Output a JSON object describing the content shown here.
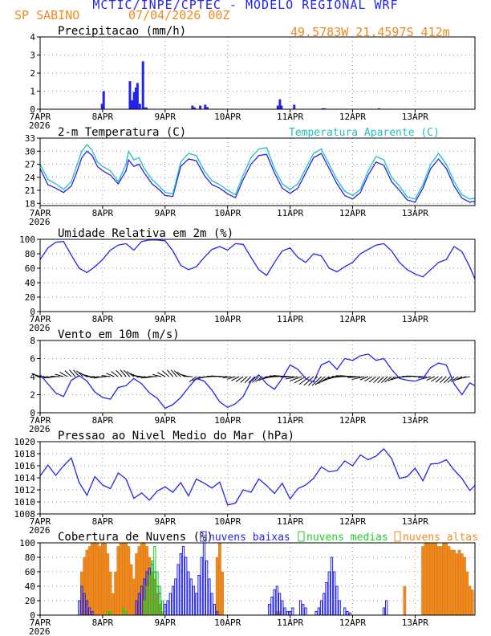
{
  "header": {
    "title": "MCTIC/INPE/CPTEC - MODELO REGIONAL WRF",
    "station": "SP SABINO",
    "date": "07/04/2026 00Z",
    "coords": "49.5783W 21.4597S 412m"
  },
  "colors": {
    "blue": "#2323ee",
    "cyan": "#1fbfbf",
    "orange": "#f08a1e",
    "green": "#22cc22",
    "black": "#000000"
  },
  "x_axis": {
    "ticks": [
      {
        "label": "7APR",
        "year": "2026",
        "hour": 0
      },
      {
        "label": "8APR",
        "hour": 24
      },
      {
        "label": "9APR",
        "hour": 48
      },
      {
        "label": "10APR",
        "hour": 72
      },
      {
        "label": "11APR",
        "hour": 96
      },
      {
        "label": "12APR",
        "hour": 120
      },
      {
        "label": "13APR",
        "hour": 144
      }
    ],
    "range_hours": [
      0,
      167
    ]
  },
  "chart_data": [
    {
      "id": "precip",
      "type": "bar",
      "title": "Precipitacao (mm/h)",
      "ylim": [
        0,
        4
      ],
      "yticks": [
        0,
        1,
        2,
        3,
        4
      ],
      "grid": true,
      "series": [
        {
          "name": "",
          "x": [
            23.8,
            24.4,
            34.5,
            35.3,
            36.1,
            36.8,
            37.4,
            38.3,
            39.5,
            40.2,
            40.8,
            58.5,
            59.3,
            61.5,
            63.4,
            64.2,
            91.3,
            92.1,
            92.7,
            97.6,
            108.5,
            109.3,
            130.2
          ],
          "values": [
            0.3,
            1.0,
            1.55,
            0.5,
            0.95,
            1.2,
            1.45,
            0.3,
            2.65,
            0.1,
            0.1,
            0.2,
            0.1,
            0.2,
            0.25,
            0.12,
            0.2,
            0.55,
            0.2,
            0.25,
            0.05,
            0.05,
            0.05
          ]
        }
      ]
    },
    {
      "id": "temp",
      "type": "line",
      "title": "2-m Temperatura (C)",
      "ylim": [
        17.5,
        33
      ],
      "yticks": [
        18,
        21,
        24,
        27,
        30,
        33
      ],
      "grid": true,
      "legend": "top-right",
      "series": [
        {
          "name": "",
          "x": [
            0,
            3,
            6,
            9,
            12,
            14,
            16,
            18,
            20,
            22,
            24,
            27,
            30,
            33,
            34,
            36,
            38,
            40,
            43,
            46,
            48,
            51,
            54,
            57,
            60,
            63,
            66,
            69,
            72,
            75,
            78,
            81,
            84,
            87,
            90,
            93,
            96,
            99,
            102,
            105,
            108,
            111,
            114,
            117,
            120,
            123,
            126,
            129,
            132,
            135,
            138,
            141,
            144,
            147,
            150,
            153,
            156,
            159,
            162,
            165,
            167
          ],
          "values": [
            26,
            22.3,
            21.5,
            20.5,
            22,
            25,
            28.5,
            30,
            29,
            26.5,
            25.5,
            24.5,
            22.5,
            25.5,
            28,
            26.5,
            27,
            25,
            22.5,
            21,
            19.8,
            19.6,
            26.5,
            28.2,
            27.8,
            24.5,
            22.3,
            21.5,
            20.2,
            19.3,
            23.5,
            27,
            29,
            29.3,
            25,
            21.5,
            20.3,
            21.5,
            25,
            28.5,
            29.5,
            26,
            22.5,
            19.8,
            19,
            20.5,
            24.5,
            27.5,
            26.8,
            23,
            21,
            18.8,
            18.3,
            21.5,
            26,
            28.2,
            26,
            22,
            19.2,
            18.3,
            18.5
          ]
        },
        {
          "name": "Temperatura Aparente (C)",
          "x": [
            0,
            3,
            6,
            9,
            12,
            14,
            16,
            18,
            20,
            22,
            24,
            27,
            30,
            33,
            34,
            36,
            38,
            40,
            43,
            46,
            48,
            51,
            54,
            57,
            60,
            63,
            66,
            69,
            72,
            75,
            78,
            81,
            84,
            87,
            90,
            93,
            96,
            99,
            102,
            105,
            108,
            111,
            114,
            117,
            120,
            123,
            126,
            129,
            132,
            135,
            138,
            141,
            144,
            147,
            150,
            153,
            156,
            159,
            162,
            165,
            167
          ],
          "values": [
            27,
            23.5,
            22.5,
            21.2,
            23,
            26.5,
            30,
            31.5,
            30.2,
            27.5,
            26.5,
            25.5,
            23,
            27,
            30,
            28,
            28.5,
            26,
            23.5,
            21.8,
            20.5,
            20.2,
            27.5,
            29.5,
            29,
            25.5,
            23.2,
            22.3,
            21,
            20,
            24.5,
            28.5,
            30.5,
            30.8,
            26,
            22.5,
            21.2,
            22.5,
            26,
            29.5,
            30.5,
            27,
            23.5,
            20.8,
            19.8,
            21.2,
            25.5,
            28.8,
            28,
            24,
            22,
            19.5,
            19,
            22.3,
            27,
            29.5,
            27,
            23,
            20,
            19,
            19.2
          ]
        }
      ]
    },
    {
      "id": "rh",
      "type": "line",
      "title": "Umidade Relativa em 2m (%)",
      "ylim": [
        0,
        100
      ],
      "yticks": [
        0,
        20,
        40,
        60,
        80,
        100
      ],
      "grid": true,
      "series": [
        {
          "name": "",
          "x": [
            0,
            3,
            6,
            9,
            12,
            15,
            18,
            21,
            24,
            27,
            30,
            33,
            36,
            39,
            42,
            45,
            48,
            51,
            54,
            57,
            60,
            63,
            66,
            69,
            72,
            75,
            78,
            81,
            84,
            87,
            90,
            93,
            96,
            99,
            102,
            105,
            108,
            111,
            114,
            117,
            120,
            123,
            126,
            129,
            132,
            135,
            138,
            141,
            144,
            147,
            150,
            153,
            156,
            159,
            162,
            165,
            167
          ],
          "values": [
            72,
            88,
            96,
            97,
            78,
            60,
            54,
            62,
            72,
            85,
            92,
            94,
            85,
            97,
            99,
            99,
            98,
            84,
            64,
            58,
            62,
            75,
            86,
            90,
            85,
            94,
            93,
            75,
            58,
            50,
            68,
            84,
            88,
            75,
            68,
            80,
            77,
            60,
            55,
            62,
            68,
            80,
            86,
            92,
            94,
            84,
            68,
            58,
            52,
            48,
            58,
            68,
            72,
            90,
            83,
            62,
            45
          ]
        }
      ]
    },
    {
      "id": "wind",
      "type": "line",
      "title": "Vento em 10m (m/s)",
      "ylim": [
        0,
        8
      ],
      "yticks": [
        0,
        2,
        4,
        6,
        8
      ],
      "grid": true,
      "series": [
        {
          "name": "",
          "x": [
            0,
            3,
            6,
            9,
            12,
            15,
            18,
            21,
            24,
            27,
            30,
            33,
            36,
            39,
            42,
            45,
            48,
            51,
            54,
            57,
            60,
            63,
            66,
            69,
            72,
            75,
            78,
            81,
            84,
            87,
            90,
            93,
            96,
            99,
            102,
            105,
            108,
            111,
            114,
            117,
            120,
            123,
            126,
            129,
            132,
            135,
            138,
            141,
            144,
            147,
            150,
            153,
            156,
            159,
            162,
            165,
            167
          ],
          "values": [
            4.2,
            3.2,
            2.2,
            1.8,
            3.6,
            4.1,
            3.5,
            2.3,
            1.7,
            1.5,
            2.8,
            3.0,
            3.8,
            3.2,
            2.2,
            1.6,
            0.5,
            0.9,
            1.7,
            2.8,
            3.8,
            3.5,
            2.5,
            1.2,
            0.6,
            1.0,
            1.8,
            3.5,
            4.2,
            3.2,
            2.6,
            3.8,
            5.3,
            4.8,
            3.8,
            3.4,
            5.3,
            5.7,
            4.8,
            6.0,
            5.8,
            6.3,
            6.5,
            5.8,
            6.0,
            4.8,
            3.8,
            3.6,
            3.5,
            3.8,
            5.0,
            5.5,
            5.3,
            3.2,
            2.0,
            3.3,
            3.0
          ]
        }
      ]
    },
    {
      "id": "slp",
      "type": "line",
      "title": "Pressao ao Nivel Medio do Mar (hPa)",
      "ylim": [
        1008,
        1020
      ],
      "yticks": [
        1008,
        1010,
        1012,
        1014,
        1016,
        1018,
        1020
      ],
      "grid": true,
      "series": [
        {
          "name": "",
          "x": [
            0,
            3,
            6,
            9,
            12,
            15,
            18,
            21,
            24,
            27,
            30,
            33,
            36,
            39,
            42,
            45,
            48,
            51,
            54,
            57,
            60,
            63,
            66,
            69,
            72,
            75,
            78,
            81,
            84,
            87,
            90,
            93,
            96,
            99,
            102,
            105,
            108,
            111,
            114,
            117,
            120,
            123,
            126,
            129,
            132,
            135,
            138,
            141,
            144,
            147,
            150,
            153,
            156,
            159,
            162,
            165,
            167
          ],
          "values": [
            1014.3,
            1016.1,
            1014.4,
            1016.0,
            1017.3,
            1013.2,
            1011.1,
            1014.2,
            1012.8,
            1012.2,
            1014.8,
            1013.8,
            1010.6,
            1011.5,
            1010.3,
            1011.8,
            1012.5,
            1011.6,
            1013.2,
            1011.0,
            1013.8,
            1013.1,
            1012.3,
            1013.3,
            1009.5,
            1009.8,
            1012.0,
            1011.6,
            1013.8,
            1012.7,
            1011.4,
            1013.1,
            1010.5,
            1012.2,
            1012.8,
            1013.9,
            1015.8,
            1015.0,
            1015.2,
            1016.8,
            1016.0,
            1017.8,
            1017.0,
            1017.6,
            1018.8,
            1017.2,
            1013.9,
            1014.2,
            1015.6,
            1013.5,
            1016.3,
            1016.4,
            1017.0,
            1015.3,
            1013.9,
            1011.9,
            1012.7
          ]
        }
      ]
    },
    {
      "id": "clouds",
      "type": "bar",
      "title": "Cobertura de Nuvens (%)",
      "ylim": [
        0,
        100
      ],
      "yticks": [
        0,
        20,
        40,
        60,
        80,
        100
      ],
      "grid": true,
      "legend": "top-right",
      "series": [
        {
          "name": "nuvens baixas",
          "x": [
            15,
            16,
            17,
            18,
            19,
            20,
            37,
            38,
            39,
            40,
            41,
            42,
            43,
            44,
            45,
            46,
            47,
            48,
            49,
            50,
            51,
            52,
            53,
            54,
            55,
            56,
            57,
            58,
            59,
            60,
            61,
            62,
            63,
            64,
            65,
            66,
            67,
            68,
            88,
            89,
            90,
            91,
            92,
            93,
            94,
            95,
            96,
            97,
            100,
            101,
            102,
            106,
            107,
            108,
            109,
            110,
            111,
            112,
            113,
            114,
            115,
            117,
            118,
            119,
            132,
            133
          ],
          "values": [
            20,
            40,
            30,
            20,
            10,
            5,
            20,
            30,
            40,
            50,
            60,
            65,
            70,
            60,
            40,
            30,
            20,
            15,
            20,
            30,
            40,
            50,
            70,
            85,
            95,
            80,
            60,
            50,
            40,
            30,
            55,
            80,
            100,
            75,
            50,
            30,
            15,
            5,
            15,
            25,
            35,
            40,
            30,
            20,
            10,
            5,
            5,
            10,
            20,
            15,
            10,
            5,
            10,
            20,
            30,
            45,
            60,
            80,
            60,
            40,
            20,
            10,
            5,
            3,
            10,
            20
          ]
        },
        {
          "name": "nuvens medias",
          "x": [
            26,
            27,
            32,
            33,
            40,
            41,
            42,
            43,
            44,
            45,
            46,
            47
          ],
          "values": [
            5,
            5,
            10,
            5,
            20,
            40,
            55,
            75,
            95,
            60,
            40,
            20
          ]
        },
        {
          "name": "nuvens altas",
          "x": [
            16,
            17,
            18,
            19,
            20,
            21,
            22,
            23,
            24,
            25,
            26,
            27,
            28,
            29,
            30,
            31,
            32,
            33,
            34,
            35,
            36,
            37,
            38,
            39,
            40,
            41,
            42,
            43,
            44,
            45,
            46,
            47,
            68,
            69,
            70,
            91,
            92,
            140,
            147,
            148,
            149,
            150,
            151,
            152,
            153,
            154,
            155,
            156,
            157,
            158,
            159,
            160,
            161,
            162,
            163,
            164,
            165,
            166
          ],
          "values": [
            60,
            80,
            90,
            95,
            100,
            100,
            100,
            95,
            100,
            100,
            85,
            60,
            30,
            60,
            95,
            100,
            100,
            100,
            95,
            70,
            50,
            85,
            95,
            100,
            100,
            95,
            80,
            60,
            50,
            30,
            15,
            5,
            80,
            100,
            60,
            5,
            5,
            40,
            95,
            100,
            100,
            100,
            100,
            100,
            95,
            95,
            100,
            100,
            95,
            90,
            90,
            85,
            90,
            85,
            80,
            60,
            40,
            35
          ]
        }
      ]
    }
  ]
}
